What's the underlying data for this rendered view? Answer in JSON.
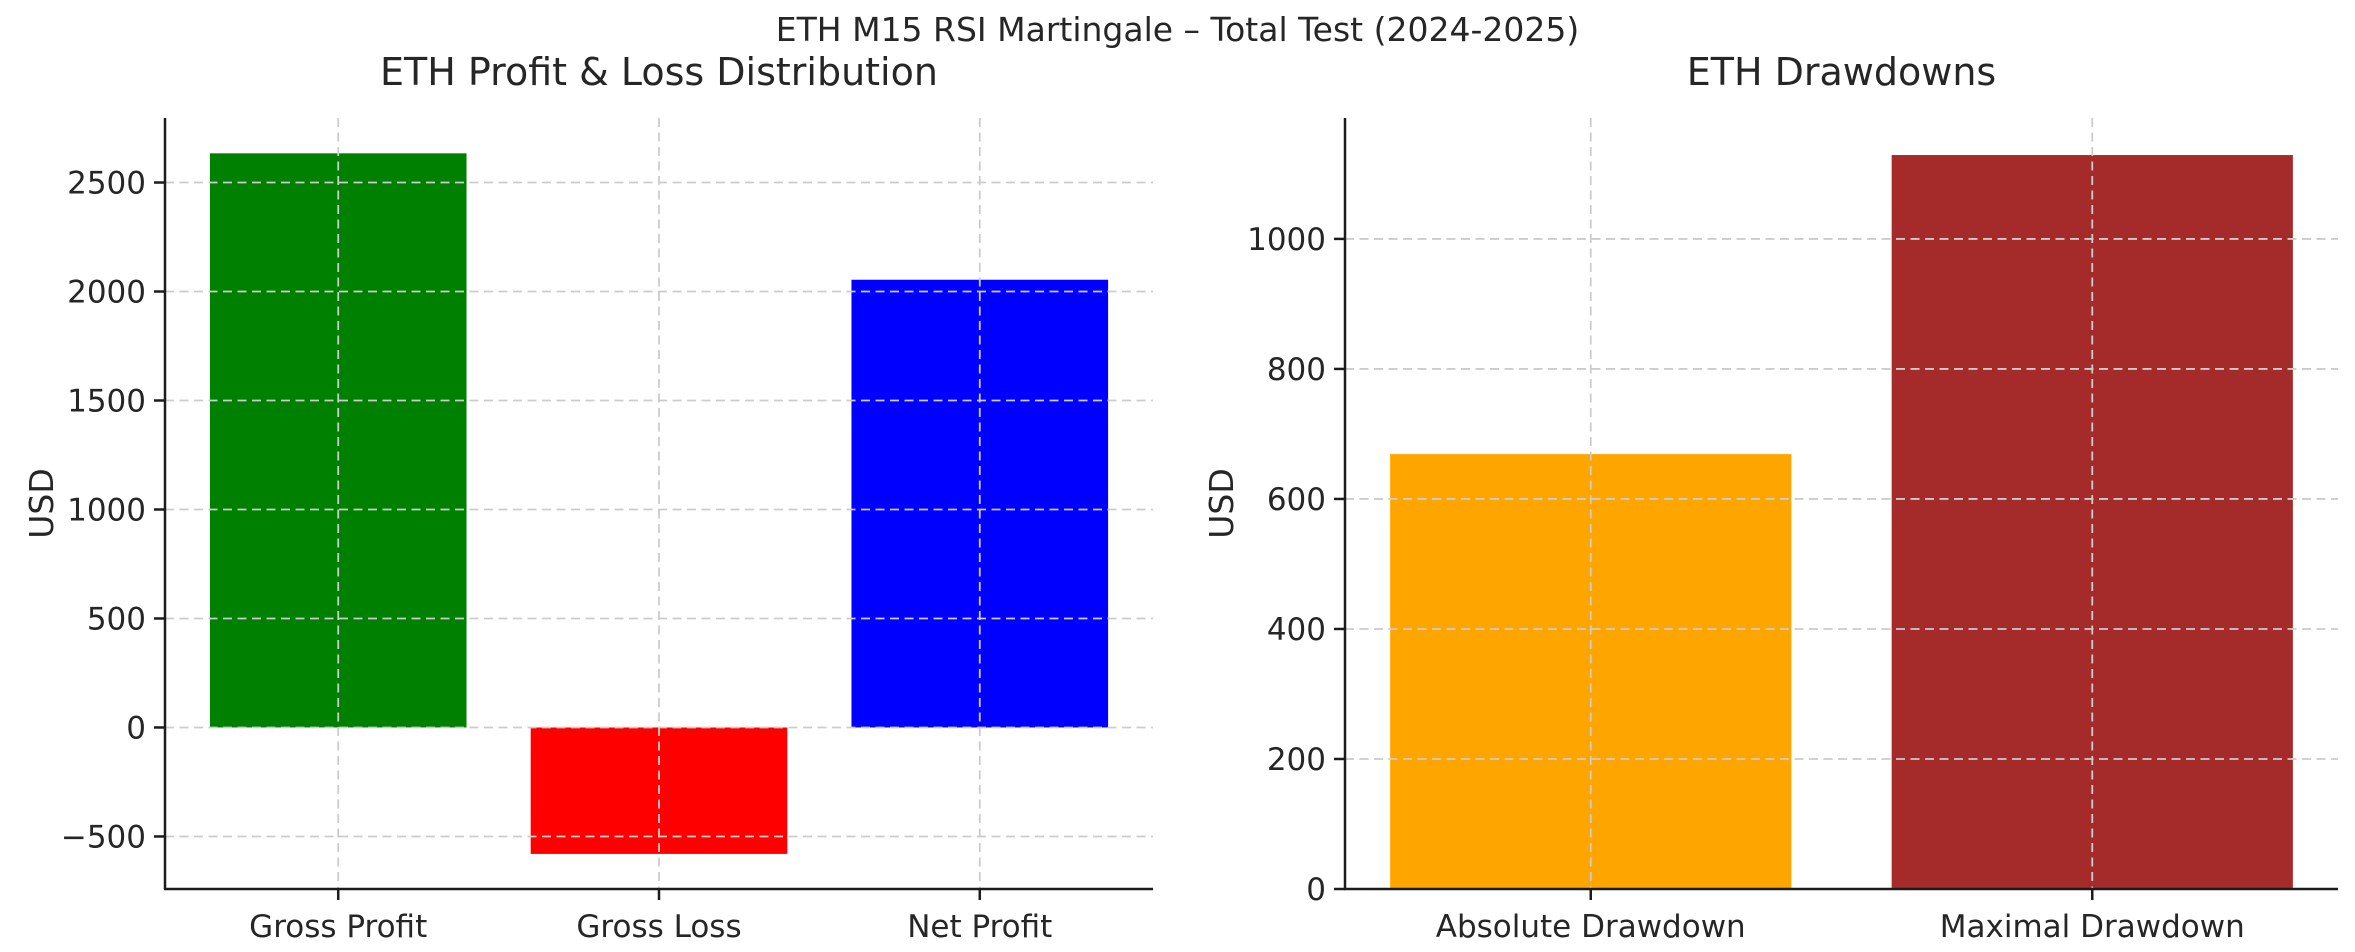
{
  "figure": {
    "suptitle": "ETH M15 RSI Martingale – Total Test (2024-2025)",
    "background_color": "#ffffff",
    "text_color": "#262626",
    "spine_color": "#1c1c1c",
    "grid_color": "#cccccc"
  },
  "chart_data": [
    {
      "type": "bar",
      "title": "ETH Profit & Loss Distribution",
      "xlabel": "",
      "ylabel": "USD",
      "categories": [
        "Gross Profit",
        "Gross Loss",
        "Net Profit"
      ],
      "values": [
        2634,
        -580,
        2054
      ],
      "bar_colors": [
        "#008000",
        "#ff0000",
        "#0000ff"
      ],
      "yticks": [
        2500,
        2000,
        1500,
        1000,
        500,
        0,
        -500
      ],
      "ylim": [
        -741,
        2796
      ],
      "grid": "dashed, horizontal at yticks and vertical at category centers, drawn over bars",
      "legend": "none"
    },
    {
      "type": "bar",
      "title": "ETH Drawdowns",
      "xlabel": "",
      "ylabel": "USD",
      "categories": [
        "Absolute Drawdown",
        "Maximal Drawdown"
      ],
      "values": [
        669,
        1129
      ],
      "bar_colors": [
        "#ffa500",
        "#a52a2a"
      ],
      "yticks": [
        1000,
        800,
        600,
        400,
        200,
        0
      ],
      "ylim": [
        0,
        1186
      ],
      "grid": "dashed, horizontal at yticks and vertical at category centers, drawn over bars",
      "legend": "none"
    }
  ]
}
